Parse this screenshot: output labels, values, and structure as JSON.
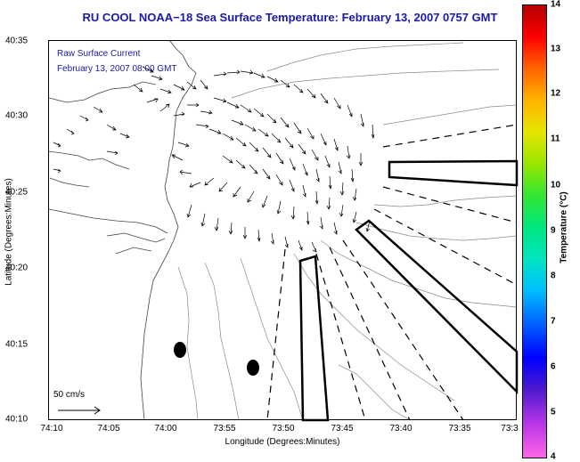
{
  "map": {
    "title": "RU COOL  NOAA−18  Sea Surface Temperature:  February 13, 2007 0757 GMT",
    "legend_line1": "Raw Surface Current",
    "legend_line2": "February 13, 2007 08:00 GMT",
    "ref_vector_label": "50 cm/s",
    "x_axis_label": "Longitude (Degrees:Minutes)",
    "y_axis_label": "Latitude (Degrees:Minutes)",
    "x_ticks": [
      "74:10",
      "74:05",
      "74:00",
      "73:55",
      "73:50",
      "73:45",
      "73:40",
      "73:35",
      "73:3"
    ],
    "y_ticks": [
      "40:35",
      "40:30",
      "40:25",
      "40:20",
      "40:15",
      "40:10"
    ],
    "colorbar": {
      "title": "Temperature (°C)",
      "ticks": [
        "14",
        "13",
        "12",
        "11",
        "10",
        "9",
        "8",
        "7",
        "6",
        "5",
        "4"
      ],
      "min": 4,
      "max": 14
    },
    "colors": {
      "title_text": "#1a1aa8",
      "legend_text": "#1a1aa8"
    }
  }
}
